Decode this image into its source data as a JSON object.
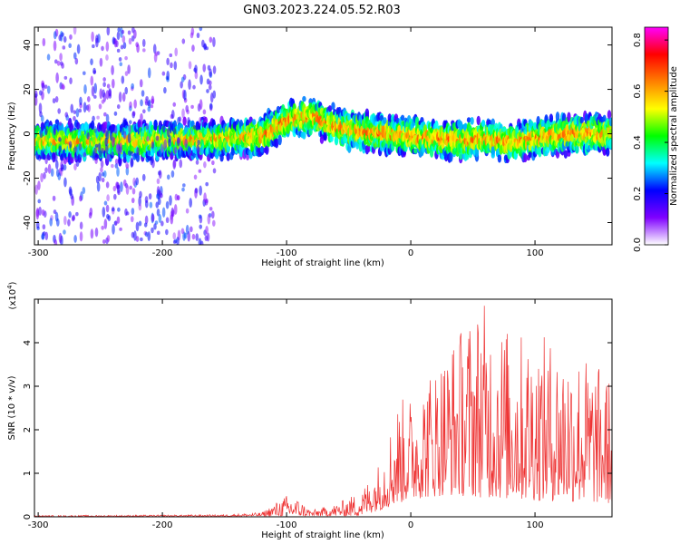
{
  "title": "GN03.2023.224.05.52.R03",
  "chart_data": [
    {
      "type": "heatmap",
      "xlabel": "Height of straight line (km)",
      "ylabel": "Frequency (Hz)",
      "xlim": [
        -303,
        162
      ],
      "ylim": [
        -50,
        48
      ],
      "xticks": [
        -300,
        -200,
        -100,
        0,
        100
      ],
      "yticks": [
        -40,
        -20,
        0,
        20,
        40
      ],
      "colorbar": {
        "label": "Normalized spectral amplitude",
        "range": [
          0,
          0.85
        ],
        "ticks": [
          "0.0",
          "0.2",
          "0.4",
          "0.6",
          "0.8"
        ],
        "colors": [
          "#ffffff",
          "#7f00ff",
          "#0000ff",
          "#00ffff",
          "#00ff00",
          "#ffff00",
          "#ff8000",
          "#ff0000",
          "#ff00ff"
        ]
      },
      "signal_band_center_hz": [
        {
          "x": -300,
          "y": -3
        },
        {
          "x": -250,
          "y": -4
        },
        {
          "x": -200,
          "y": -3
        },
        {
          "x": -150,
          "y": -2
        },
        {
          "x": -120,
          "y": -1
        },
        {
          "x": -100,
          "y": 6
        },
        {
          "x": -80,
          "y": 8
        },
        {
          "x": -60,
          "y": 3
        },
        {
          "x": -40,
          "y": 1
        },
        {
          "x": -20,
          "y": 0
        },
        {
          "x": 0,
          "y": -1
        },
        {
          "x": 20,
          "y": -2
        },
        {
          "x": 40,
          "y": -3
        },
        {
          "x": 60,
          "y": -2
        },
        {
          "x": 80,
          "y": -4
        },
        {
          "x": 100,
          "y": -2
        },
        {
          "x": 130,
          "y": 0
        },
        {
          "x": 160,
          "y": 0
        }
      ]
    },
    {
      "type": "line",
      "xlabel": "Height of straight line (km)",
      "ylabel": "SNR (10 * v/v)",
      "y_multiplier": "(x10",
      "y_multiplier_exp": "4",
      "y_multiplier_close": ")",
      "xlim": [
        -303,
        162
      ],
      "ylim": [
        0,
        5
      ],
      "xticks": [
        -300,
        -200,
        -100,
        0,
        100
      ],
      "yticks": [
        0,
        1,
        2,
        3,
        4
      ],
      "color": "#ee3333",
      "envelope": [
        {
          "x": -303,
          "y": 0.03
        },
        {
          "x": -150,
          "y": 0.05
        },
        {
          "x": -120,
          "y": 0.1
        },
        {
          "x": -108,
          "y": 0.35
        },
        {
          "x": -100,
          "y": 0.5
        },
        {
          "x": -90,
          "y": 0.4
        },
        {
          "x": -80,
          "y": 0.15
        },
        {
          "x": -60,
          "y": 0.3
        },
        {
          "x": -40,
          "y": 0.6
        },
        {
          "x": -25,
          "y": 1.3
        },
        {
          "x": -10,
          "y": 2.7
        },
        {
          "x": 0,
          "y": 2.8
        },
        {
          "x": 20,
          "y": 3.6
        },
        {
          "x": 40,
          "y": 4.4
        },
        {
          "x": 57,
          "y": 5.0
        },
        {
          "x": 80,
          "y": 4.3
        },
        {
          "x": 100,
          "y": 4.2
        },
        {
          "x": 130,
          "y": 4.0
        },
        {
          "x": 162,
          "y": 3.2
        }
      ],
      "floor": [
        {
          "x": -303,
          "y": 0.0
        },
        {
          "x": -40,
          "y": 0.02
        },
        {
          "x": -20,
          "y": 0.2
        },
        {
          "x": 0,
          "y": 0.4
        },
        {
          "x": 30,
          "y": 0.5
        },
        {
          "x": 80,
          "y": 0.4
        },
        {
          "x": 162,
          "y": 0.3
        }
      ]
    }
  ]
}
